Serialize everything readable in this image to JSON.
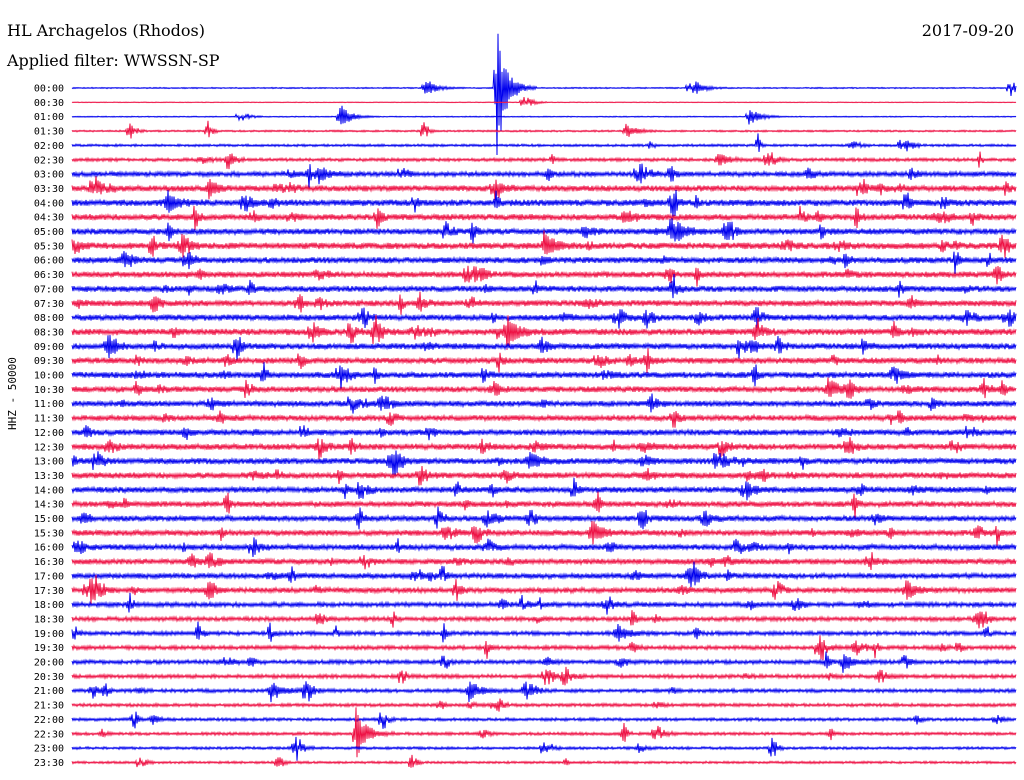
{
  "header": {
    "station": "HL Archagelos (Rhodos)",
    "filter": "Applied filter: WWSSN-SP",
    "date": "2017-09-20"
  },
  "chart_data": {
    "type": "line",
    "title": "HL Archagelos (Rhodos)",
    "subtitle": "Applied filter: WWSSN-SP",
    "date": "2017-09-20",
    "ylabel": "HHZ - 50000",
    "xlabel": "",
    "row_labels": [
      "00:00",
      "00:30",
      "01:00",
      "01:30",
      "02:00",
      "02:30",
      "03:00",
      "03:30",
      "04:00",
      "04:30",
      "05:00",
      "05:30",
      "06:00",
      "06:30",
      "07:00",
      "07:30",
      "08:00",
      "08:30",
      "09:00",
      "09:30",
      "10:00",
      "10:30",
      "11:00",
      "11:30",
      "12:00",
      "12:30",
      "13:00",
      "13:30",
      "14:00",
      "14:30",
      "15:00",
      "15:30",
      "16:00",
      "16:30",
      "17:00",
      "17:30",
      "18:00",
      "18:30",
      "19:00",
      "19:30",
      "20:00",
      "20:30",
      "21:00",
      "21:30",
      "22:00",
      "22:30",
      "23:00",
      "23:30"
    ],
    "series_colors": [
      "#0000ee",
      "#ee1144"
    ],
    "noise_level": [
      0.6,
      0.4,
      0.5,
      0.9,
      1.2,
      1.6,
      2.4,
      3.0,
      3.2,
      3.1,
      3.0,
      3.2,
      3.0,
      3.0,
      3.0,
      3.0,
      3.0,
      3.2,
      3.0,
      3.0,
      3.0,
      2.9,
      2.8,
      2.8,
      2.9,
      3.0,
      3.0,
      3.0,
      2.9,
      2.8,
      2.8,
      2.8,
      2.8,
      2.8,
      2.6,
      2.6,
      2.3,
      2.1,
      2.0,
      2.0,
      2.0,
      1.9,
      1.8,
      1.6,
      1.5,
      1.5,
      1.3,
      1.2
    ],
    "events": [
      {
        "row": 0,
        "minute": 11.2,
        "amplitude": 12
      },
      {
        "row": 0,
        "minute": 13.5,
        "amplitude": 70
      },
      {
        "row": 0,
        "minute": 19.8,
        "amplitude": 8
      },
      {
        "row": 2,
        "minute": 8.5,
        "amplitude": 14
      },
      {
        "row": 2,
        "minute": 21.5,
        "amplitude": 12
      },
      {
        "row": 3,
        "minute": 17.6,
        "amplitude": 8
      },
      {
        "row": 5,
        "minute": 20.5,
        "amplitude": 8
      },
      {
        "row": 6,
        "minute": 7.8,
        "amplitude": 10
      },
      {
        "row": 8,
        "minute": 3.0,
        "amplitude": 12
      },
      {
        "row": 10,
        "minute": 19.0,
        "amplitude": 14
      },
      {
        "row": 11,
        "minute": 15.0,
        "amplitude": 14
      },
      {
        "row": 17,
        "minute": 13.8,
        "amplitude": 18
      },
      {
        "row": 21,
        "minute": 24.0,
        "amplitude": 12
      },
      {
        "row": 26,
        "minute": 14.5,
        "amplitude": 12
      },
      {
        "row": 31,
        "minute": 16.5,
        "amplitude": 14
      },
      {
        "row": 35,
        "minute": 26.5,
        "amplitude": 10
      },
      {
        "row": 38,
        "minute": 17.3,
        "amplitude": 10
      },
      {
        "row": 40,
        "minute": 24.5,
        "amplitude": 10
      },
      {
        "row": 42,
        "minute": 6.3,
        "amplitude": 12
      },
      {
        "row": 42,
        "minute": 12.6,
        "amplitude": 12
      },
      {
        "row": 45,
        "minute": 9.0,
        "amplitude": 30
      }
    ]
  }
}
